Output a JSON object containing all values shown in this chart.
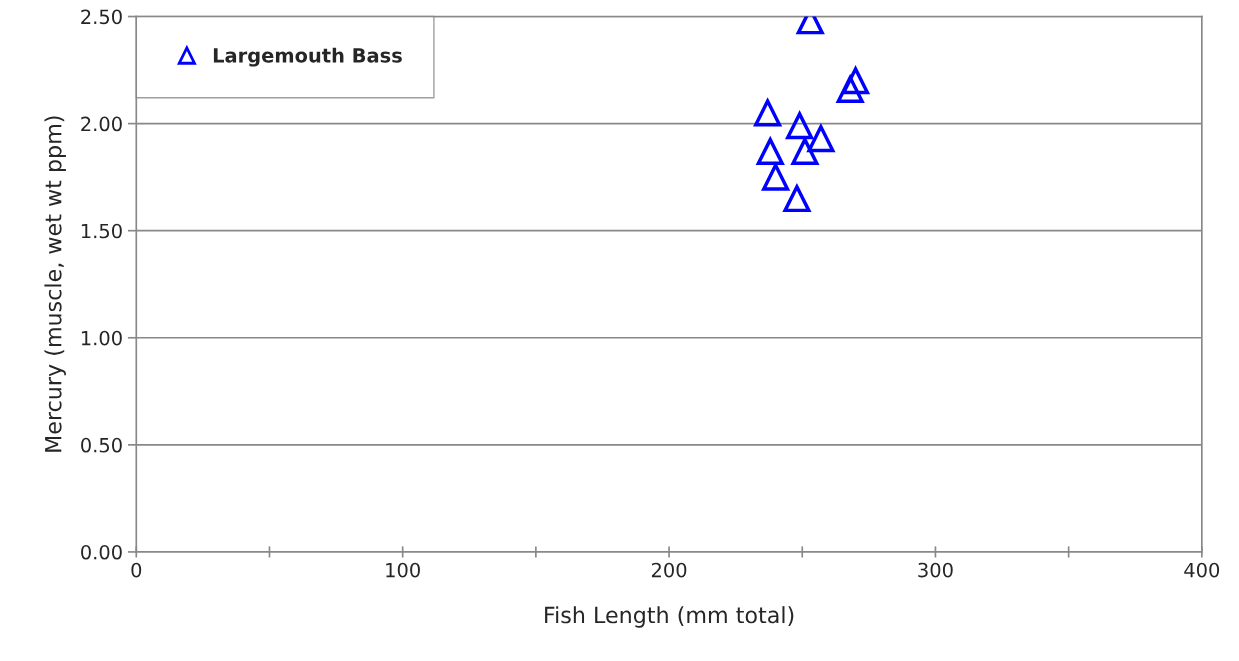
{
  "chart_data": {
    "type": "scatter",
    "xlabel": "Fish Length (mm total)",
    "ylabel": "Mercury (muscle, wet wt ppm)",
    "x": [
      253,
      270,
      268,
      237,
      249,
      257,
      238,
      251,
      240,
      248
    ],
    "series": [
      {
        "name": "Largemouth Bass",
        "color": "#0000ff",
        "values": [
          2.48,
          2.2,
          2.16,
          2.05,
          1.99,
          1.93,
          1.87,
          1.87,
          1.75,
          1.65
        ]
      }
    ],
    "xlim": [
      0,
      400
    ],
    "ylim": [
      0,
      2.5
    ],
    "xticks": [
      0,
      {
        "value": 50,
        "label": null
      },
      100,
      {
        "value": 150,
        "label": null
      },
      200,
      {
        "value": 250,
        "label": null
      },
      300,
      {
        "value": 350,
        "label": null
      },
      400
    ],
    "yticks": [
      {
        "value": 0,
        "label": "0.00"
      },
      {
        "value": 0.5,
        "label": "0.50"
      },
      {
        "value": 1,
        "label": "1.00"
      },
      {
        "value": 1.5,
        "label": "1.50"
      },
      {
        "value": 2,
        "label": "2.00"
      },
      {
        "value": 2.5,
        "label": "2.50"
      }
    ],
    "grid": "y",
    "legend": "top left",
    "marker": "triangle"
  }
}
